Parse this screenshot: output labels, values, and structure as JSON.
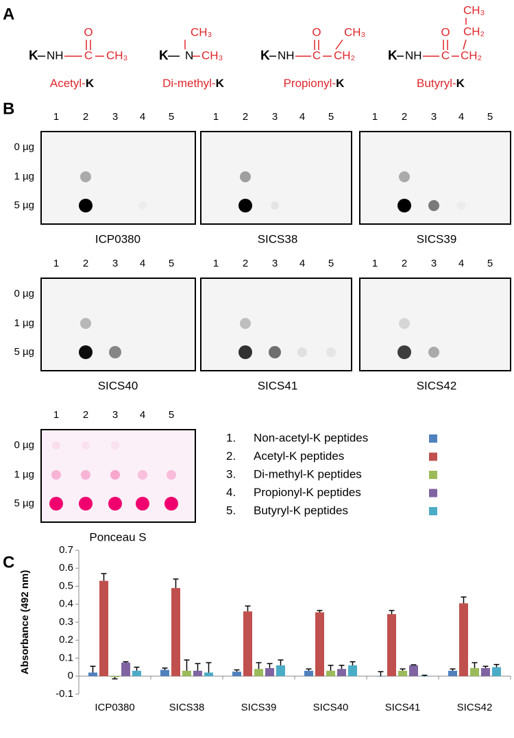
{
  "panel_labels": [
    "A",
    "B",
    "C"
  ],
  "structures": [
    {
      "atoms": [
        "K",
        "NH",
        "C",
        "O",
        "CH₃"
      ],
      "name": "Acetyl-",
      "k": "K"
    },
    {
      "atoms": [
        "K",
        "N",
        "CH₃",
        "CH₃"
      ],
      "name": "Di-methyl-",
      "k": "K"
    },
    {
      "atoms": [
        "K",
        "NH",
        "C",
        "O",
        "CH₂",
        "CH₃"
      ],
      "name": "Propionyl-",
      "k": "K"
    },
    {
      "atoms": [
        "K",
        "NH",
        "C",
        "O",
        "CH₂",
        "CH₂",
        "CH₃"
      ],
      "name": "Butyryl-",
      "k": "K"
    }
  ],
  "lanes": [
    "1",
    "2",
    "3",
    "4",
    "5"
  ],
  "amounts": [
    "0 µg",
    "1 µg",
    "5 µg"
  ],
  "blots": [
    "ICP0380",
    "SICS38",
    "SICS39",
    "SICS40",
    "SICS41",
    "SICS42",
    "Ponceau S"
  ],
  "legend_numbers": [
    "1.",
    "2.",
    "3.",
    "4.",
    "5."
  ],
  "chart_data": {
    "type": "bar",
    "ylabel": "Absorbance (492 nm)",
    "categories": [
      "ICP0380",
      "SICS38",
      "SICS39",
      "SICS40",
      "SICS41",
      "SICS42"
    ],
    "series": [
      {
        "name": "Non-acetyl-K peptides",
        "color": "#4f81bd",
        "values": [
          0.02,
          0.035,
          0.025,
          0.03,
          0.0,
          0.03
        ],
        "errors": [
          0.035,
          0.01,
          0.01,
          0.01,
          0.025,
          0.01
        ]
      },
      {
        "name": "Acetyl-K peptides",
        "color": "#c0504d",
        "values": [
          0.53,
          0.49,
          0.36,
          0.355,
          0.345,
          0.405
        ],
        "errors": [
          0.04,
          0.05,
          0.03,
          0.01,
          0.02,
          0.035
        ]
      },
      {
        "name": "Di-methyl-K peptides",
        "color": "#9bbb59",
        "values": [
          -0.005,
          0.03,
          0.04,
          0.03,
          0.03,
          0.045
        ],
        "errors": [
          0.01,
          0.06,
          0.035,
          0.03,
          0.01,
          0.03
        ]
      },
      {
        "name": "Propionyl-K peptides",
        "color": "#8064a2",
        "values": [
          0.075,
          0.03,
          0.045,
          0.04,
          0.06,
          0.045
        ],
        "errors": [
          0.005,
          0.04,
          0.025,
          0.02,
          0.003,
          0.01
        ]
      },
      {
        "name": "Butyryl-K peptides",
        "color": "#4bacc6",
        "values": [
          0.03,
          0.02,
          0.06,
          0.06,
          0.0,
          0.05
        ],
        "errors": [
          0.02,
          0.055,
          0.03,
          0.02,
          0.005,
          0.015
        ]
      }
    ],
    "ylim": [
      -0.1,
      0.7
    ],
    "yticks": [
      -0.1,
      0,
      0.1,
      0.2,
      0.3,
      0.4,
      0.5,
      0.6,
      0.7
    ]
  }
}
